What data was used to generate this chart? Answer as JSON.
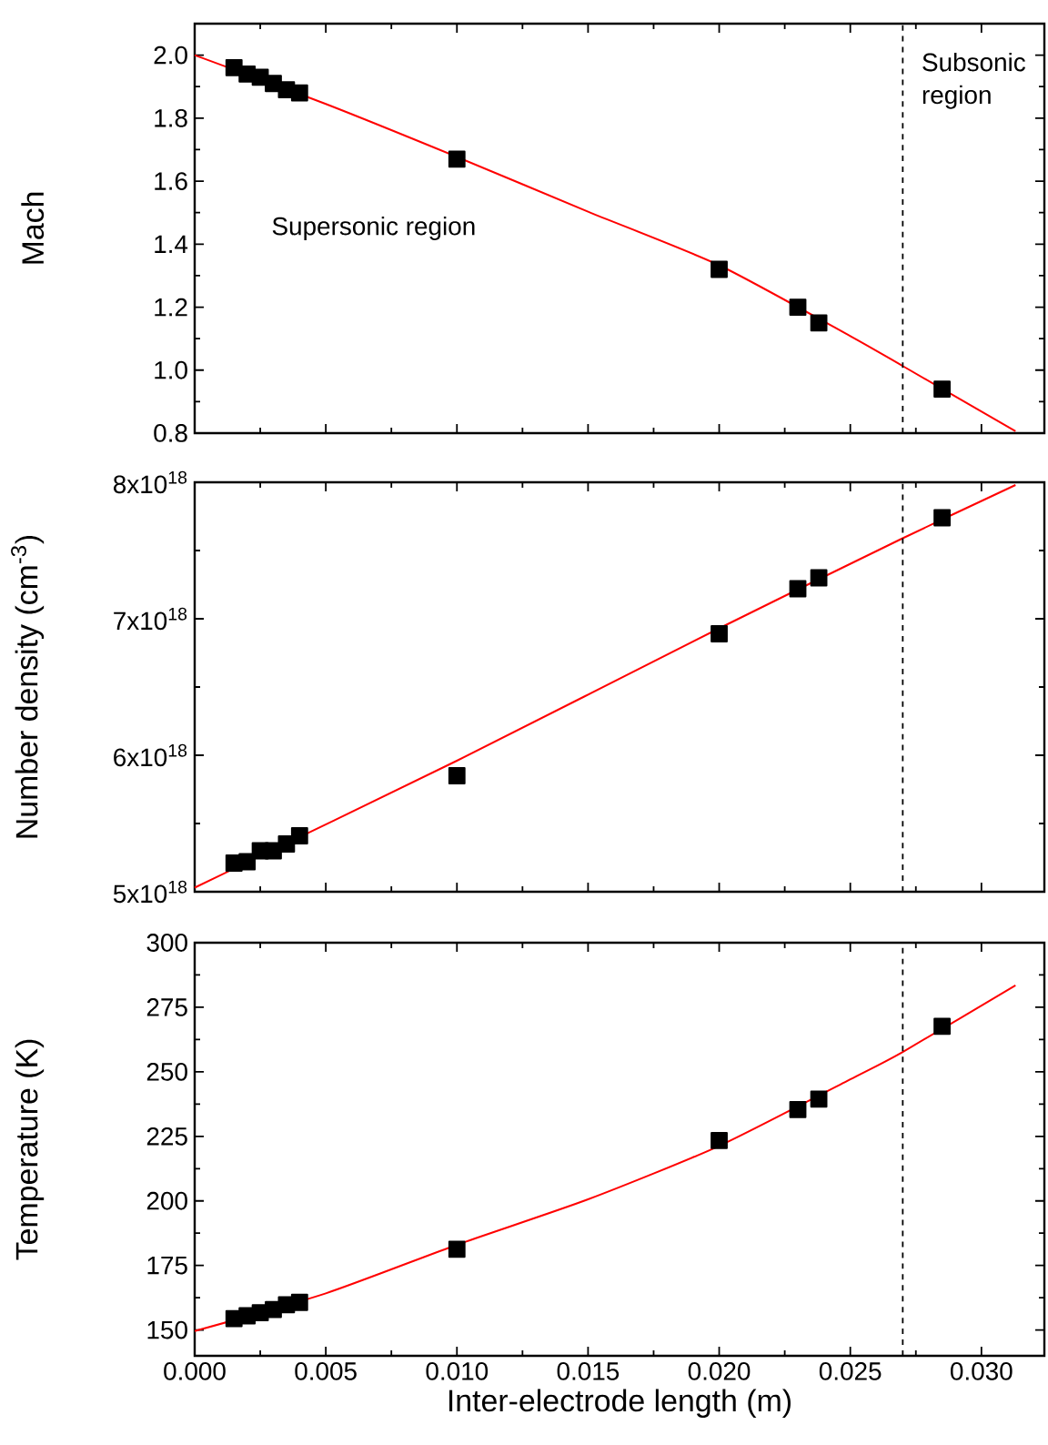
{
  "chart_data": [
    {
      "type": "scatter",
      "ylabel": "Mach",
      "xlim": [
        0,
        0.0324
      ],
      "ylim": [
        0.8,
        2.1
      ],
      "xticks": [
        0,
        0.005,
        0.01,
        0.015,
        0.02,
        0.025,
        0.03
      ],
      "yticks": [
        {
          "value": 0.8,
          "label": "0.8"
        },
        {
          "value": 1.0,
          "label": "1.0"
        },
        {
          "value": 1.2,
          "label": "1.2"
        },
        {
          "value": 1.4,
          "label": "1.4"
        },
        {
          "value": 1.6,
          "label": "1.6"
        },
        {
          "value": 1.8,
          "label": "1.8"
        },
        {
          "value": 2.0,
          "label": "2.0"
        }
      ],
      "tick_labels": "y",
      "annotations": [
        "Supersonic region",
        "Subsonic region"
      ],
      "ref_lines": [
        {
          "axis": "x",
          "value": 0.027,
          "color": "#000000",
          "line_style": "dashed"
        }
      ],
      "series": [
        {
          "marker": "square",
          "color": "#000000",
          "x": [
            0.0015,
            0.002,
            0.0025,
            0.003,
            0.0035,
            0.004,
            0.01,
            0.02,
            0.023,
            0.0238,
            0.0285
          ],
          "values": [
            1.96,
            1.94,
            1.93,
            1.91,
            1.89,
            1.88,
            1.67,
            1.32,
            1.2,
            1.15,
            0.94
          ]
        },
        {
          "type": "line",
          "marker": "none",
          "color": "#ff0000",
          "x": [
            0,
            0.005,
            0.01,
            0.015,
            0.02,
            0.025,
            0.027,
            0.0313
          ],
          "values": [
            2.0,
            1.845,
            1.677,
            1.503,
            1.333,
            1.108,
            1.013,
            0.806
          ]
        }
      ]
    },
    {
      "type": "scatter",
      "ylabel": "Number density (cm$^{-3}$)",
      "xlim": [
        0,
        0.0324
      ],
      "ylim": [
        5e+18,
        8e+18
      ],
      "xticks": [
        0,
        0.005,
        0.01,
        0.015,
        0.02,
        0.025,
        0.03
      ],
      "yticks": [
        {
          "value": 5e+18,
          "label": "5x10$^{18}$"
        },
        {
          "value": 6e+18,
          "label": "6x10$^{18}$"
        },
        {
          "value": 7e+18,
          "label": "7x10$^{18}$"
        },
        {
          "value": 8e+18,
          "label": "8x10$^{18}$"
        }
      ],
      "tick_labels": "y",
      "ref_lines": [
        {
          "axis": "x",
          "value": 0.027,
          "color": "#000000",
          "line_style": "dashed"
        }
      ],
      "series": [
        {
          "marker": "square",
          "color": "#000000",
          "x": [
            0.0015,
            0.002,
            0.0025,
            0.003,
            0.0035,
            0.004,
            0.01,
            0.02,
            0.023,
            0.0238,
            0.0285
          ],
          "values": [
            5.21e+18,
            5.22e+18,
            5.3e+18,
            5.3e+18,
            5.35e+18,
            5.41e+18,
            5.85e+18,
            6.89e+18,
            7.22e+18,
            7.3e+18,
            7.74e+18
          ]
        },
        {
          "type": "line",
          "marker": "none",
          "color": "#ff0000",
          "x": [
            0,
            0.01,
            0.02,
            0.027,
            0.0313
          ],
          "values": [
            5.03e+18,
            5.96e+18,
            6.93e+18,
            7.59e+18,
            7.98e+18
          ]
        }
      ]
    },
    {
      "type": "scatter",
      "ylabel": "Temperature (K)",
      "xlabel": "Inter-electrode length (m)",
      "xlim": [
        0,
        0.0324
      ],
      "ylim": [
        140,
        300
      ],
      "xticks": [
        {
          "value": 0,
          "label": "0.000"
        },
        {
          "value": 0.005,
          "label": "0.005"
        },
        {
          "value": 0.01,
          "label": "0.010"
        },
        {
          "value": 0.015,
          "label": "0.015"
        },
        {
          "value": 0.02,
          "label": "0.020"
        },
        {
          "value": 0.025,
          "label": "0.025"
        },
        {
          "value": 0.03,
          "label": "0.030"
        }
      ],
      "yticks": [
        150,
        175,
        200,
        225,
        250,
        275,
        300
      ],
      "ref_lines": [
        {
          "axis": "x",
          "value": 0.027,
          "color": "#000000",
          "line_style": "dashed"
        }
      ],
      "series": [
        {
          "marker": "square",
          "color": "#000000",
          "x": [
            0.0015,
            0.002,
            0.0025,
            0.003,
            0.0035,
            0.004,
            0.01,
            0.02,
            0.023,
            0.0238,
            0.0285
          ],
          "values": [
            154.4,
            155.5,
            156.7,
            157.9,
            159.8,
            160.7,
            181.3,
            223.4,
            235.4,
            239.4,
            267.6
          ]
        },
        {
          "type": "line",
          "marker": "none",
          "color": "#ff0000",
          "x": [
            0,
            0.005,
            0.01,
            0.015,
            0.02,
            0.025,
            0.027,
            0.0313
          ],
          "values": [
            149.6,
            164.2,
            183,
            200.6,
            221.3,
            247.1,
            257.7,
            283.5
          ]
        }
      ]
    }
  ]
}
